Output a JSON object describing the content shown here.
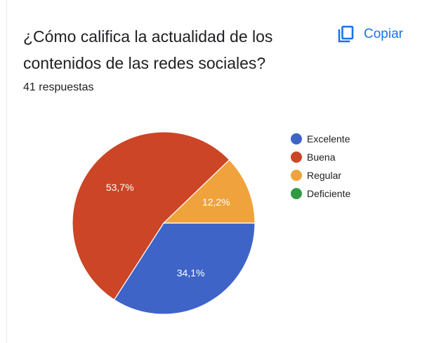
{
  "question": {
    "title": "¿Cómo califica la actualidad de los contenidos de las redes sociales?",
    "copy_label": "Copiar",
    "response_count": "41 respuestas"
  },
  "icons": {
    "copy": "copy-icon"
  },
  "colors": {
    "accent": "#1a73e8",
    "text": "#202124"
  },
  "chart_data": {
    "type": "pie",
    "categories": [
      "Excelente",
      "Buena",
      "Regular",
      "Deficiente"
    ],
    "values": [
      34.1,
      53.7,
      12.2,
      0
    ],
    "labels": [
      "34,1%",
      "53,7%",
      "12,2%",
      ""
    ],
    "colors": [
      "#3e64c8",
      "#cc4526",
      "#f0a33c",
      "#2f9a42"
    ],
    "legend_position": "right"
  }
}
